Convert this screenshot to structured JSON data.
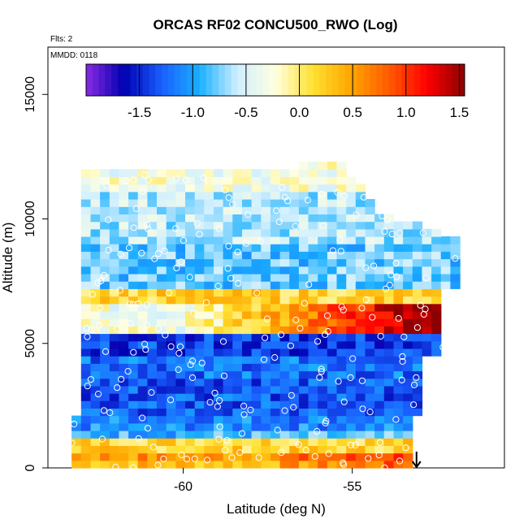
{
  "chart_data": {
    "type": "heatmap",
    "title": "ORCAS RF02 CONCU500_RWO (Log)",
    "annotations": [
      "Flts: 2",
      "MMDD: 0118"
    ],
    "xlabel": "Latitude (deg N)",
    "ylabel": "Altitude (m)",
    "xlim": [
      -64.0,
      -50.5
    ],
    "ylim": [
      0,
      16900
    ],
    "x_ticks": [
      -60,
      -55
    ],
    "x_tick_labels": [
      "-60",
      "-55"
    ],
    "y_ticks": [
      0,
      5000,
      10000,
      15000
    ],
    "y_tick_labels": [
      "0",
      "5000",
      "10000",
      "15000"
    ],
    "colorbar": {
      "range": [
        -2.0,
        1.55
      ],
      "ticks": [
        -1.5,
        -1.0,
        -0.5,
        0.0,
        0.5,
        1.0,
        1.5
      ],
      "tick_labels": [
        "-1.5",
        "-1.0",
        "-0.5",
        "0.0",
        "0.5",
        "1.0",
        "1.5"
      ],
      "colors": [
        "#8a2be2",
        "#0000b0",
        "#1a5fff",
        "#1ab0ff",
        "#cfefff",
        "#ffffe0",
        "#ffe030",
        "#ffa500",
        "#ff5a00",
        "#ff0000",
        "#8b0000"
      ],
      "placement": "top"
    },
    "bands": [
      {
        "y_range": [
          0,
          300
        ],
        "value": 0.35
      },
      {
        "y_range": [
          300,
          650
        ],
        "value": 0.55
      },
      {
        "y_range": [
          650,
          1100
        ],
        "value": 0.2
      },
      {
        "y_range": [
          1100,
          1400
        ],
        "value": -0.9
      },
      {
        "y_range": [
          1400,
          2200
        ],
        "value": -1.1
      },
      {
        "y_range": [
          2200,
          3500
        ],
        "value": -1.3
      },
      {
        "y_range": [
          3500,
          4600
        ],
        "value": -1.2
      },
      {
        "y_range": [
          4600,
          5500
        ],
        "value": -1.4
      },
      {
        "y_range": [
          5500,
          6500
        ],
        "value": 0.6
      },
      {
        "y_range": [
          6500,
          7300
        ],
        "value": 0.2
      },
      {
        "y_range": [
          7300,
          9000
        ],
        "value": -0.8
      },
      {
        "y_range": [
          9000,
          11000
        ],
        "value": -0.6
      },
      {
        "y_range": [
          11000,
          12300
        ],
        "value": -0.3
      }
    ],
    "flight_marker": {
      "x": -53.1,
      "y": 0,
      "label": "↓"
    }
  }
}
